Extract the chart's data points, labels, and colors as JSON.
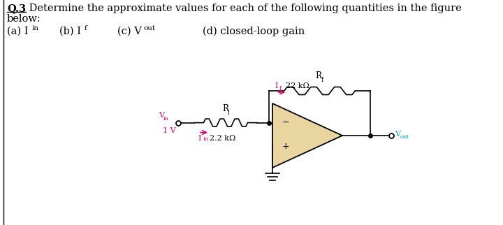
{
  "bg_color": "#ffffff",
  "text_color": "#000000",
  "pink_color": "#e0006a",
  "cyan_color": "#00a0c0",
  "opamp_fill": "#e8d5a0",
  "opamp_edge": "#000000",
  "title_bold": "Q.3",
  "title_rest": " Determine the approximate values for each of the following quantities in the figure",
  "line2": "below:",
  "ri_value": "2.2 kΩ",
  "rf_value": "22 kΩ",
  "lw": 1.2
}
